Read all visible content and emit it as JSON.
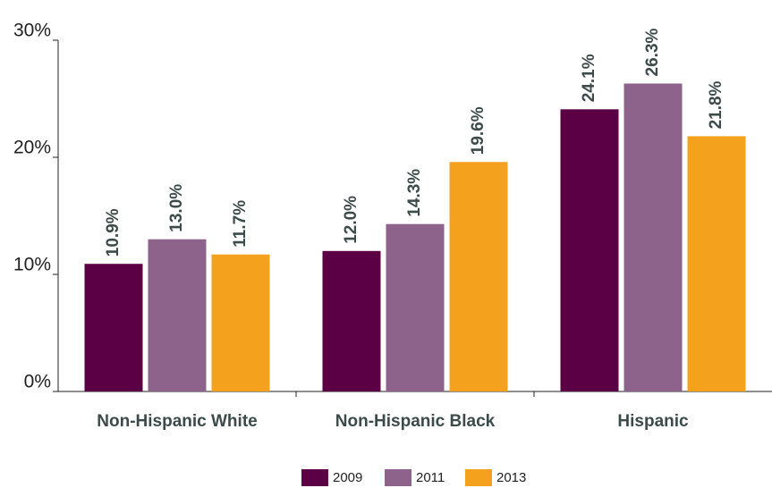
{
  "chart_data": {
    "type": "bar",
    "categories": [
      "Non-Hispanic White",
      "Non-Hispanic Black",
      "Hispanic"
    ],
    "series": [
      {
        "name": "2009",
        "color": "#5b0045",
        "values": [
          10.9,
          12.0,
          24.1
        ],
        "value_labels": [
          "10.9%",
          "12.0%",
          "24.1%"
        ]
      },
      {
        "name": "2011",
        "color": "#8d638c",
        "values": [
          13.0,
          14.3,
          26.3
        ],
        "value_labels": [
          "13.0%",
          "14.3%",
          "26.3%"
        ]
      },
      {
        "name": "2013",
        "color": "#f4a11e",
        "values": [
          11.7,
          19.6,
          21.8
        ],
        "value_labels": [
          "11.7%",
          "19.6%",
          "21.8%"
        ]
      }
    ],
    "ylim": [
      0,
      30
    ],
    "yticks": [
      {
        "value": 0,
        "label": "0%"
      },
      {
        "value": 10,
        "label": "10%"
      },
      {
        "value": 20,
        "label": "20%"
      },
      {
        "value": 30,
        "label": "30%"
      }
    ],
    "legend": "bottom"
  }
}
